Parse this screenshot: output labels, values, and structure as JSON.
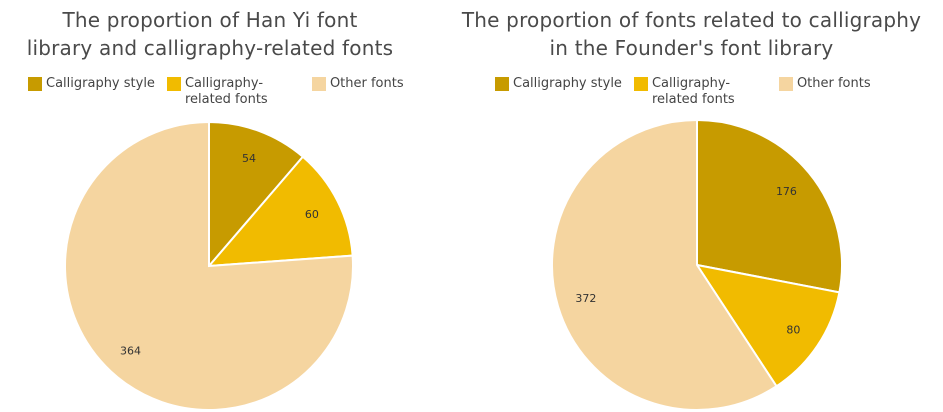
{
  "chart_data": [
    {
      "type": "pie",
      "title": "The proportion of Han Yi font\nlibrary and calligraphy-related fonts",
      "legend_position": "top",
      "categories": [
        "Calligraphy style",
        "Calligraphy-related fonts",
        "Other fonts"
      ],
      "values": [
        54,
        60,
        364
      ],
      "colors": [
        "#c79b00",
        "#f1bb00",
        "#f5d5a0"
      ]
    },
    {
      "type": "pie",
      "title": "The proportion of fonts related to calligraphy\nin the Founder's font library",
      "legend_position": "top",
      "categories": [
        "Calligraphy style",
        "Calligraphy-related fonts",
        "Other fonts"
      ],
      "values": [
        176,
        80,
        372
      ],
      "colors": [
        "#c79b00",
        "#f1bb00",
        "#f5d5a0"
      ]
    }
  ]
}
